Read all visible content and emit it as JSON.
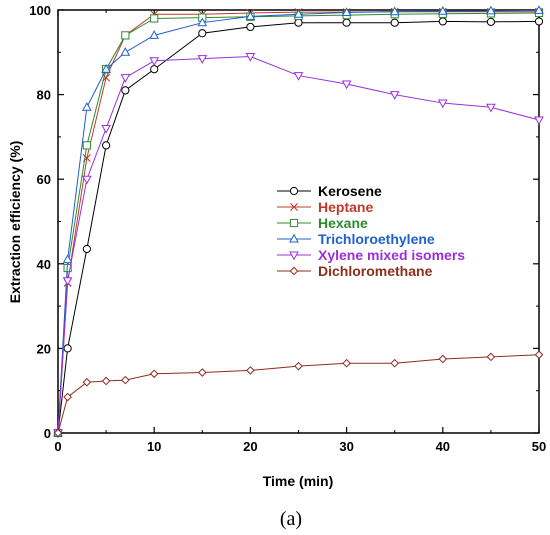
{
  "chart_data": {
    "type": "line",
    "xlabel": "Time (min)",
    "ylabel": "Extraction efficiency (%)",
    "caption": "(a)",
    "xlim": [
      0,
      50
    ],
    "ylim": [
      0,
      100
    ],
    "xticks": [
      0,
      10,
      20,
      30,
      40,
      50
    ],
    "yticks": [
      0,
      20,
      40,
      60,
      80,
      100
    ],
    "grid": false,
    "legend_position": "center-right",
    "series": [
      {
        "name": "Kerosene",
        "color": "#000000",
        "marker": "circle",
        "x": [
          0,
          1,
          3,
          5,
          7,
          10,
          15,
          20,
          25,
          30,
          35,
          40,
          45,
          50
        ],
        "y": [
          0,
          20,
          43.5,
          68,
          81,
          86,
          94.5,
          96,
          97,
          97,
          97,
          97.3,
          97.2,
          97.3
        ]
      },
      {
        "name": "Heptane",
        "color": "#c0392b",
        "marker": "x",
        "x": [
          0,
          1,
          3,
          5,
          7,
          10,
          15,
          20,
          25,
          30,
          35,
          40,
          45,
          50
        ],
        "y": [
          0,
          35.5,
          65,
          84,
          94,
          99,
          99,
          99.3,
          99.5,
          99.5,
          99.6,
          99.6,
          99.6,
          99.6
        ]
      },
      {
        "name": "Hexane",
        "color": "#2e8b2e",
        "marker": "square",
        "x": [
          0,
          1,
          3,
          5,
          7,
          10,
          15,
          20,
          25,
          30,
          35,
          40,
          45,
          50
        ],
        "y": [
          0,
          39,
          68,
          86,
          94,
          98,
          98.2,
          98.4,
          98.6,
          98.8,
          99,
          99.1,
          99.2,
          99.3
        ]
      },
      {
        "name": "Trichloroethylene",
        "color": "#1f5fcf",
        "marker": "triangle-up",
        "x": [
          0,
          1,
          3,
          5,
          7,
          10,
          15,
          20,
          25,
          30,
          35,
          40,
          45,
          50
        ],
        "y": [
          0,
          41,
          77,
          86,
          90,
          94,
          97,
          98.5,
          99,
          99.4,
          99.6,
          99.7,
          99.8,
          99.9
        ]
      },
      {
        "name": "Xylene mixed isomers",
        "color": "#9b30d9",
        "marker": "triangle-down",
        "x": [
          0,
          1,
          3,
          5,
          7,
          10,
          15,
          20,
          25,
          30,
          35,
          40,
          45,
          50
        ],
        "y": [
          0,
          36,
          60,
          72,
          84,
          88,
          88.5,
          89,
          84.5,
          82.5,
          80,
          78,
          77,
          74
        ]
      },
      {
        "name": "Dichloromethane",
        "color": "#8b2e1a",
        "marker": "diamond",
        "x": [
          0,
          1,
          3,
          5,
          7,
          10,
          15,
          20,
          25,
          30,
          35,
          40,
          45,
          50
        ],
        "y": [
          0,
          8.5,
          12,
          12.3,
          12.5,
          14,
          14.3,
          14.8,
          15.8,
          16.5,
          16.5,
          17.5,
          18,
          18.5
        ]
      }
    ]
  }
}
